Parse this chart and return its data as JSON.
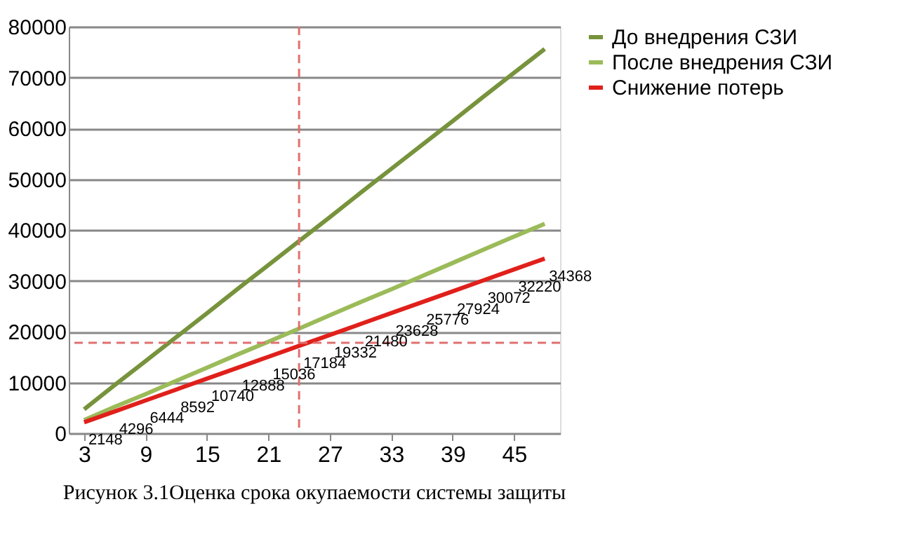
{
  "chart_data": {
    "type": "line",
    "annotations": [
      "Рисунок 3.1Оценка срока окупаемости системы  защиты"
    ],
    "x": [
      3,
      6,
      9,
      12,
      15,
      18,
      21,
      24,
      27,
      30,
      33,
      36,
      39,
      42,
      45,
      48
    ],
    "xlim": [
      1.5,
      49.5
    ],
    "xticks": [
      3,
      9,
      15,
      21,
      27,
      33,
      39,
      45
    ],
    "ylim": [
      0,
      80000
    ],
    "yticks": [
      0,
      10000,
      20000,
      30000,
      40000,
      50000,
      60000,
      70000,
      80000
    ],
    "grid": "y",
    "legend": "right",
    "marker": "none",
    "line_style": "solid",
    "series": [
      {
        "name": "До внедрения СЗИ",
        "color": "#77933c",
        "values": [
          4700,
          9500,
          14200,
          18900,
          23600,
          28400,
          33100,
          37800,
          42500,
          47300,
          52000,
          56700,
          61400,
          66200,
          70900,
          75600
        ]
      },
      {
        "name": "После внедрения СЗИ",
        "color": "#9bbb59",
        "values": [
          2600,
          5200,
          7700,
          10300,
          12900,
          15500,
          18000,
          20600,
          23200,
          25800,
          28300,
          30900,
          33500,
          36100,
          38700,
          41200
        ]
      },
      {
        "name": "Снижение потерь",
        "color": "#e0201b",
        "values": [
          2148,
          4296,
          6444,
          8592,
          10740,
          12888,
          15036,
          17184,
          19332,
          21480,
          23628,
          25776,
          27924,
          30072,
          32220,
          34368
        ],
        "value_labels": [
          "2148",
          "4296",
          "6444",
          "8592",
          "10740",
          "12888",
          "15036",
          "17184",
          "19332",
          "21480",
          "23628",
          "25776",
          "27924",
          "30072",
          "32220",
          "34368"
        ]
      }
    ],
    "ref_lines": [
      {
        "axis": "x",
        "value": 24,
        "color": "#e07070",
        "line_style": "dashed"
      },
      {
        "axis": "y",
        "value": 17800,
        "color": "#e07070",
        "line_style": "dashed"
      }
    ]
  }
}
